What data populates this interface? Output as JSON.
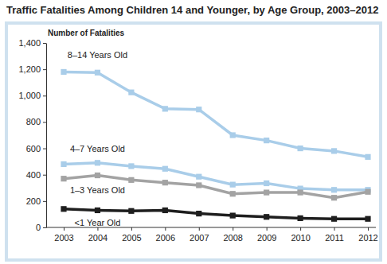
{
  "chart_data": {
    "type": "line",
    "title": "Traffic Fatalities Among Children 14 and Younger, by Age Group, 2003–2012",
    "y_label": "Number of Fatalities",
    "categories": [
      "2003",
      "2004",
      "2005",
      "2006",
      "2007",
      "2008",
      "2009",
      "2010",
      "2011",
      "2012"
    ],
    "series": [
      {
        "name": "8–14 Years Old",
        "color": "#a9cde9",
        "values": [
          1180,
          1175,
          1025,
          900,
          895,
          700,
          660,
          600,
          580,
          535
        ]
      },
      {
        "name": "4–7 Years Old",
        "color": "#a9cde9",
        "values": [
          480,
          490,
          465,
          445,
          385,
          325,
          335,
          295,
          285,
          285
        ]
      },
      {
        "name": "1–3 Years Old",
        "color": "#a3a3a3",
        "values": [
          370,
          395,
          360,
          340,
          320,
          255,
          265,
          265,
          225,
          270
        ]
      },
      {
        "name": "<1 Year Old",
        "color": "#1e1e1e",
        "values": [
          140,
          130,
          125,
          130,
          105,
          90,
          80,
          70,
          65,
          65
        ]
      }
    ],
    "ylim": [
      0,
      1400
    ],
    "yticks": [
      0,
      200,
      400,
      600,
      800,
      {
        "value": 1000,
        "label": "1,000"
      },
      {
        "value": 1200,
        "label": "1,200"
      },
      {
        "value": 1400,
        "label": "1,400"
      }
    ],
    "grid": false,
    "marker": "square"
  }
}
